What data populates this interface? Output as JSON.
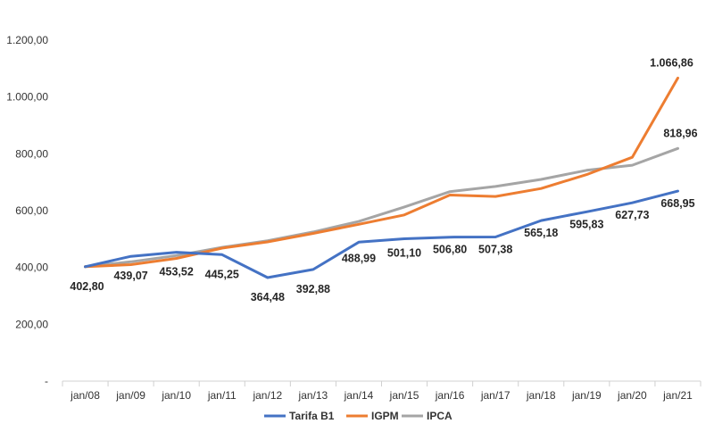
{
  "chart_data": {
    "type": "line",
    "categories": [
      "jan/08",
      "jan/09",
      "jan/10",
      "jan/11",
      "jan/12",
      "jan/13",
      "jan/14",
      "jan/15",
      "jan/16",
      "jan/17",
      "jan/18",
      "jan/19",
      "jan/20",
      "jan/21"
    ],
    "ylim": [
      0,
      1200
    ],
    "yticks": [
      0,
      200,
      400,
      600,
      800,
      1000,
      1200
    ],
    "ytick_labels": [
      "-",
      "200,00",
      "400,00",
      "600,00",
      "800,00",
      "1.000,00",
      "1.200,00"
    ],
    "grid": false,
    "legend_position": "bottom",
    "series": [
      {
        "name": "Tarifa B1",
        "color": "#4472C4",
        "values": [
          402.8,
          439.07,
          453.52,
          445.25,
          364.48,
          392.88,
          488.99,
          501.1,
          506.8,
          507.38,
          565.18,
          595.83,
          627.73,
          668.95
        ],
        "labels": [
          "402,80",
          "439,07",
          "453,52",
          "445,25",
          "364,48",
          "392,88",
          "488,99",
          "501,10",
          "506,80",
          "507,38",
          "565,18",
          "595,83",
          "627,73",
          "668,95"
        ]
      },
      {
        "name": "IGPM",
        "color": "#ED7D31",
        "values": [
          402.8,
          410,
          432,
          468,
          490,
          520,
          552,
          585,
          655,
          650,
          678,
          727,
          788,
          1066.86
        ],
        "labels": [
          "",
          "",
          "",
          "",
          "",
          "",
          "",
          "",
          "",
          "",
          "",
          "",
          "",
          "1.066,86"
        ]
      },
      {
        "name": "IPCA",
        "color": "#A5A5A5",
        "values": [
          402.8,
          420,
          442,
          471,
          494,
          525,
          562,
          613,
          667,
          685,
          710,
          742,
          760,
          818.96
        ],
        "labels": [
          "",
          "",
          "",
          "",
          "",
          "",
          "",
          "",
          "",
          "",
          "",
          "",
          "",
          "818,96"
        ]
      }
    ]
  }
}
